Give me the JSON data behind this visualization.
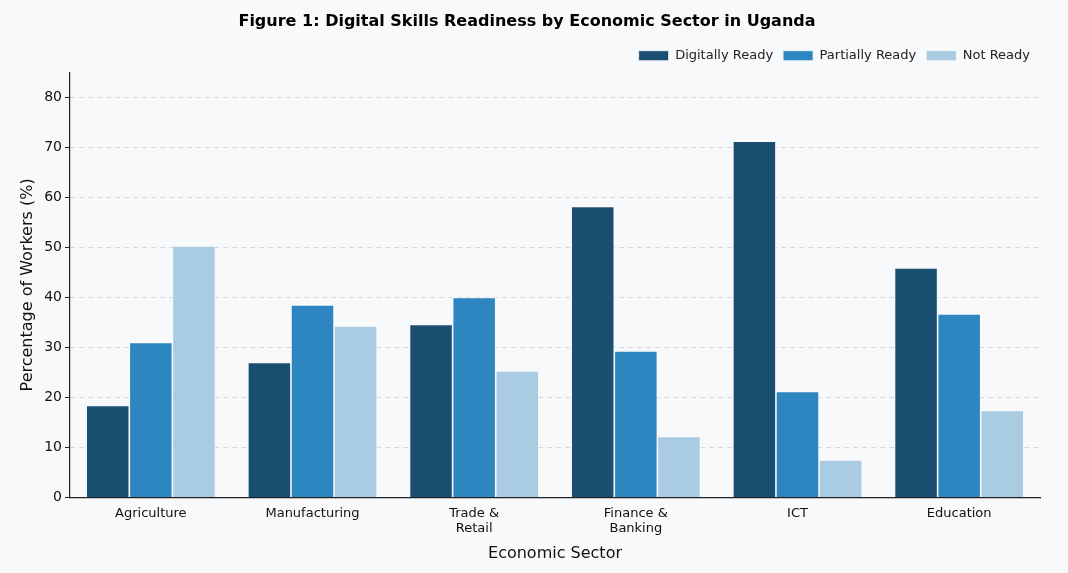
{
  "chart_data": {
    "type": "bar",
    "title": "Figure 1: Digital Skills Readiness by Economic Sector in Uganda",
    "xlabel": "Economic Sector",
    "ylabel": "Percentage of Workers (%)",
    "categories": [
      "Agriculture",
      "Manufacturing",
      "Trade &\nRetail",
      "Finance &\nBanking",
      "ICT",
      "Education"
    ],
    "series": [
      {
        "name": "Digitally Ready",
        "color": "#1b4f72",
        "values": [
          18.4,
          27.0,
          34.6,
          58.2,
          71.2,
          45.9
        ]
      },
      {
        "name": "Partially Ready",
        "color": "#2e86c1",
        "values": [
          31.0,
          38.5,
          40.0,
          29.3,
          21.2,
          36.7
        ]
      },
      {
        "name": "Not Ready",
        "color": "#a9cce3",
        "values": [
          50.3,
          34.3,
          25.3,
          12.2,
          7.5,
          17.4
        ]
      }
    ],
    "ylim": [
      0,
      85
    ],
    "yticks": [
      0,
      10,
      20,
      30,
      40,
      50,
      60,
      70,
      80
    ],
    "grid": "y",
    "legend": "top right"
  }
}
